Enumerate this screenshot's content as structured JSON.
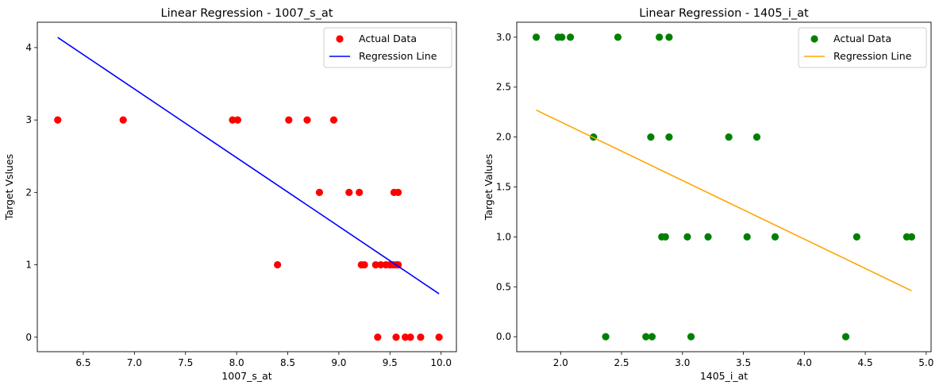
{
  "chart_data": [
    {
      "type": "scatter",
      "title": "Linear Regression - 1007_s_at",
      "xlabel": "1007_s_at",
      "ylabel": "Target Vslues",
      "xlim": [
        6.05,
        10.15
      ],
      "ylim": [
        -0.2,
        4.35
      ],
      "xticks": [
        6.5,
        7.0,
        7.5,
        8.0,
        8.5,
        9.0,
        9.5,
        10.0
      ],
      "xtick_labels": [
        "6.5",
        "7.0",
        "7.5",
        "8.0",
        "8.5",
        "9.0",
        "9.5",
        "10.0"
      ],
      "yticks": [
        0,
        1,
        2,
        3,
        4
      ],
      "ytick_labels": [
        "0",
        "1",
        "2",
        "3",
        "4"
      ],
      "grid": false,
      "legend_position": "top-right",
      "series": [
        {
          "name": "Actual Data",
          "kind": "scatter",
          "color": "#ff0000",
          "points": [
            [
              6.25,
              3
            ],
            [
              6.89,
              3
            ],
            [
              7.96,
              3
            ],
            [
              8.01,
              3
            ],
            [
              8.51,
              3
            ],
            [
              8.69,
              3
            ],
            [
              8.95,
              3
            ],
            [
              8.81,
              2
            ],
            [
              9.1,
              2
            ],
            [
              9.2,
              2
            ],
            [
              9.54,
              2
            ],
            [
              9.58,
              2
            ],
            [
              8.4,
              1
            ],
            [
              9.22,
              1
            ],
            [
              9.25,
              1
            ],
            [
              9.36,
              1
            ],
            [
              9.41,
              1
            ],
            [
              9.46,
              1
            ],
            [
              9.5,
              1
            ],
            [
              9.53,
              1
            ],
            [
              9.56,
              1
            ],
            [
              9.58,
              1
            ],
            [
              9.38,
              0
            ],
            [
              9.56,
              0
            ],
            [
              9.65,
              0
            ],
            [
              9.7,
              0
            ],
            [
              9.8,
              0
            ],
            [
              9.98,
              0
            ]
          ]
        },
        {
          "name": "Regression Line",
          "kind": "line",
          "color": "#0000ff",
          "points": [
            [
              6.25,
              4.14
            ],
            [
              9.98,
              0.6
            ]
          ]
        }
      ]
    },
    {
      "type": "scatter",
      "title": "Linear Regression - 1405_i_at",
      "xlabel": "1405_i_at",
      "ylabel": "Target Values",
      "xlim": [
        1.64,
        5.04
      ],
      "ylim": [
        -0.15,
        3.15
      ],
      "xticks": [
        2.0,
        2.5,
        3.0,
        3.5,
        4.0,
        4.5,
        5.0
      ],
      "xtick_labels": [
        "2.0",
        "2.5",
        "3.0",
        "3.5",
        "4.0",
        "4.5",
        "5.0"
      ],
      "yticks": [
        0.0,
        0.5,
        1.0,
        1.5,
        2.0,
        2.5,
        3.0
      ],
      "ytick_labels": [
        "0.0",
        "0.5",
        "1.0",
        "1.5",
        "2.0",
        "2.5",
        "3.0"
      ],
      "grid": false,
      "legend_position": "top-right",
      "series": [
        {
          "name": "Actual Data",
          "kind": "scatter",
          "color": "#008000",
          "points": [
            [
              1.8,
              3
            ],
            [
              1.98,
              3
            ],
            [
              2.01,
              3
            ],
            [
              2.08,
              3
            ],
            [
              2.47,
              3
            ],
            [
              2.81,
              3
            ],
            [
              2.89,
              3
            ],
            [
              2.27,
              2
            ],
            [
              2.74,
              2
            ],
            [
              2.89,
              2
            ],
            [
              3.38,
              2
            ],
            [
              3.61,
              2
            ],
            [
              2.83,
              1
            ],
            [
              2.86,
              1
            ],
            [
              3.04,
              1
            ],
            [
              3.21,
              1
            ],
            [
              3.53,
              1
            ],
            [
              3.76,
              1
            ],
            [
              4.43,
              1
            ],
            [
              4.84,
              1
            ],
            [
              4.88,
              1
            ],
            [
              2.37,
              0
            ],
            [
              2.7,
              0
            ],
            [
              2.75,
              0
            ],
            [
              3.07,
              0
            ],
            [
              4.34,
              0
            ]
          ]
        },
        {
          "name": "Regression Line",
          "kind": "line",
          "color": "#ffa500",
          "points": [
            [
              1.8,
              2.27
            ],
            [
              4.88,
              0.46
            ]
          ]
        }
      ]
    }
  ]
}
